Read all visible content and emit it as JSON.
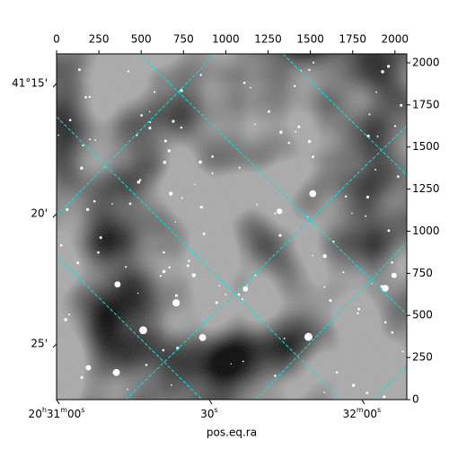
{
  "chart_data": {
    "type": "image",
    "xlabel": "pos.eq.ra",
    "xlim": [
      0,
      2070
    ],
    "ylim": [
      0,
      2053
    ],
    "xticks": [
      0,
      250,
      500,
      750,
      1000,
      1250,
      1500,
      1750,
      2000
    ],
    "yticks": [
      0,
      250,
      500,
      750,
      1000,
      1250,
      1500,
      1750,
      2000
    ],
    "ra_ticks": [
      {
        "value": 0,
        "label": "20h31m00s"
      },
      {
        "value": 902,
        "label": "30s"
      },
      {
        "value": 1804,
        "label": "32m00s"
      }
    ],
    "dec_ticks": [
      {
        "value": 1877,
        "label": "41°15'"
      },
      {
        "value": 1104,
        "label": "20'"
      },
      {
        "value": 331,
        "label": "25'"
      }
    ],
    "grid_color": "#00e5e5"
  }
}
